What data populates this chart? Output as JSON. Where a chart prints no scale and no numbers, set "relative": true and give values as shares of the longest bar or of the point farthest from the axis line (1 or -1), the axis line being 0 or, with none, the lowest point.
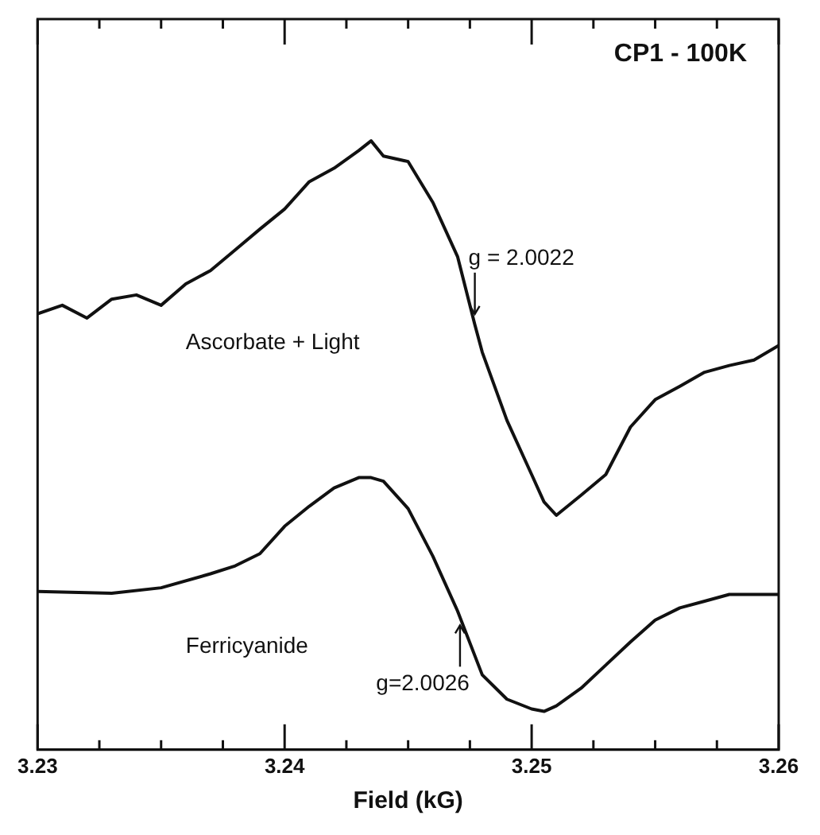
{
  "chart_data": {
    "type": "line",
    "relative": true,
    "xlabel": "Field (kG)",
    "xlim": [
      3.23,
      3.26
    ],
    "xticks": [
      3.23,
      {
        "value": 3.2325,
        "label": null
      },
      {
        "value": 3.235,
        "label": null
      },
      {
        "value": 3.2375,
        "label": null
      },
      3.24,
      {
        "value": 3.2425,
        "label": null
      },
      {
        "value": 3.245,
        "label": null
      },
      {
        "value": 3.2475,
        "label": null
      },
      3.25,
      {
        "value": 3.2525,
        "label": null
      },
      {
        "value": 3.255,
        "label": null
      },
      {
        "value": 3.2575,
        "label": null
      },
      3.26
    ],
    "grid": false,
    "legend": false,
    "marker": "none",
    "line_style": "solid",
    "annotations": [
      "CP1 - 100K",
      {
        "text": "g = 2.0022",
        "x": 3.2477,
        "y": 0.7
      },
      {
        "text": "g=2.0026",
        "x": 3.2471,
        "y": 0.22
      }
    ],
    "series": [
      {
        "name": "Ascorbate + Light",
        "color": "#111111",
        "x": [
          3.23,
          3.231,
          3.232,
          3.233,
          3.234,
          3.235,
          3.236,
          3.237,
          3.238,
          3.239,
          3.24,
          3.241,
          3.242,
          3.243,
          3.2435,
          3.244,
          3.245,
          3.246,
          3.247,
          3.2477,
          3.248,
          3.249,
          3.25,
          3.2505,
          3.251,
          3.252,
          3.253,
          3.254,
          3.255,
          3.256,
          3.257,
          3.258,
          3.259,
          3.26
        ],
        "values": [
          0.716,
          0.73,
          0.709,
          0.74,
          0.747,
          0.73,
          0.765,
          0.787,
          0.821,
          0.855,
          0.888,
          0.933,
          0.955,
          0.984,
          1.0,
          0.975,
          0.966,
          0.899,
          0.81,
          0.698,
          0.653,
          0.541,
          0.452,
          0.407,
          0.385,
          0.418,
          0.452,
          0.53,
          0.575,
          0.597,
          0.62,
          0.631,
          0.64,
          0.664
        ]
      },
      {
        "name": "Ferricyanide",
        "color": "#111111",
        "x": [
          3.23,
          3.233,
          3.235,
          3.237,
          3.238,
          3.239,
          3.24,
          3.241,
          3.242,
          3.243,
          3.2435,
          3.244,
          3.245,
          3.246,
          3.247,
          3.248,
          3.249,
          3.25,
          3.2505,
          3.251,
          3.252,
          3.253,
          3.254,
          3.255,
          3.256,
          3.257,
          3.258,
          3.26
        ],
        "values": [
          0.26,
          0.257,
          0.266,
          0.289,
          0.302,
          0.322,
          0.367,
          0.4,
          0.43,
          0.447,
          0.447,
          0.441,
          0.396,
          0.318,
          0.228,
          0.123,
          0.083,
          0.067,
          0.063,
          0.072,
          0.101,
          0.139,
          0.177,
          0.213,
          0.233,
          0.244,
          0.255,
          0.255
        ]
      }
    ]
  }
}
